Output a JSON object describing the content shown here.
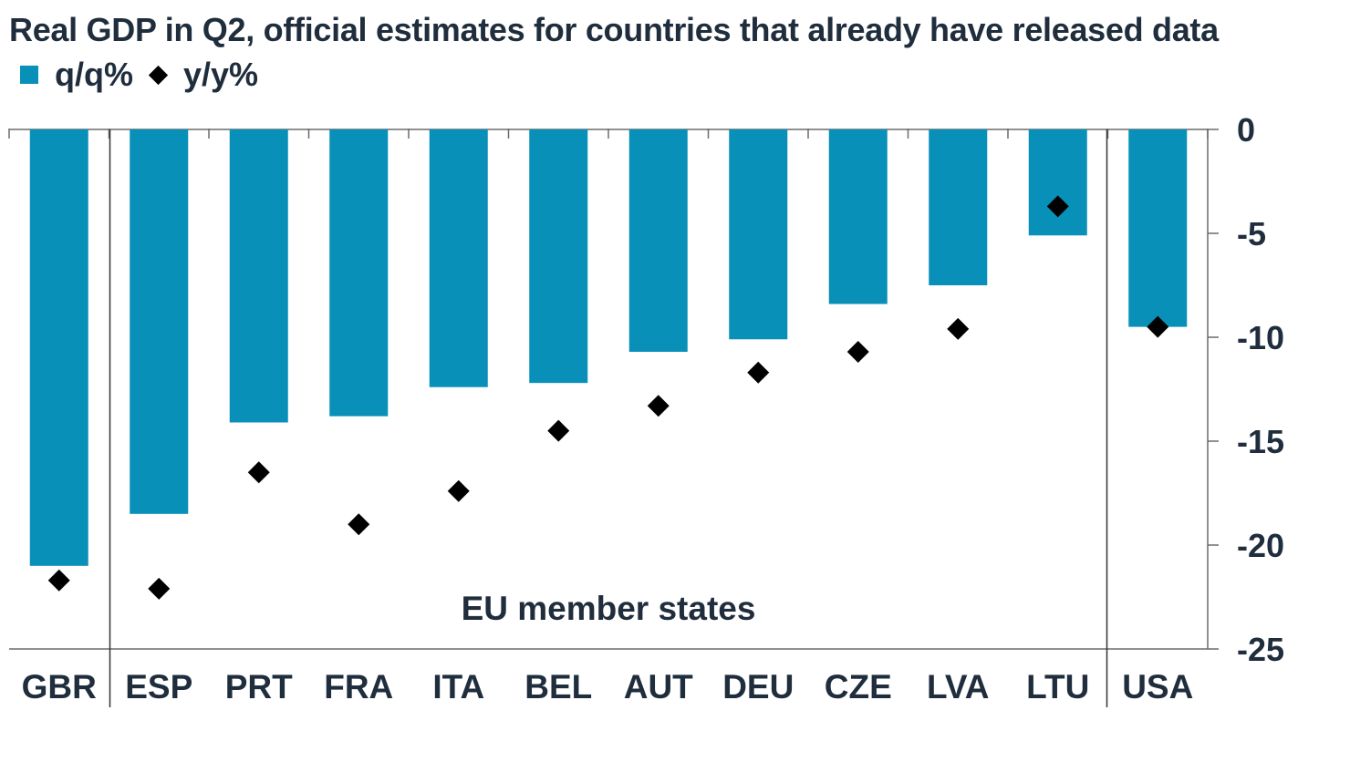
{
  "chart_data": {
    "type": "bar",
    "title": "Real GDP in Q2, official estimates for countries that already have released data",
    "categories": [
      "GBR",
      "ESP",
      "PRT",
      "FRA",
      "ITA",
      "BEL",
      "AUT",
      "DEU",
      "CZE",
      "LVA",
      "LTU",
      "USA"
    ],
    "series": [
      {
        "name": "q/q%",
        "kind": "bar",
        "color": "#0890b8",
        "values": [
          -21.0,
          -18.5,
          -14.1,
          -13.8,
          -12.4,
          -12.2,
          -10.7,
          -10.1,
          -8.4,
          -7.5,
          -5.1,
          -9.5
        ]
      },
      {
        "name": "y/y%",
        "kind": "marker-diamond",
        "color": "#000000",
        "values": [
          -21.7,
          -22.1,
          -16.5,
          -19.0,
          -17.4,
          -14.5,
          -13.3,
          -11.7,
          -10.7,
          -9.6,
          -3.7,
          -9.5
        ]
      }
    ],
    "yaxis": {
      "position": "right",
      "ticks": [
        0,
        -5,
        -10,
        -15,
        -20,
        -25
      ],
      "tick_labels": [
        "0",
        "-5",
        "-10",
        "-15",
        "-20",
        "-25"
      ]
    },
    "ylim": [
      -25,
      0
    ],
    "xlabel": "",
    "ylabel": "",
    "grid": false,
    "legend": "top-left",
    "annotations": [
      {
        "text": "EU member states",
        "group_start": "ESP",
        "group_end": "LTU"
      }
    ]
  }
}
